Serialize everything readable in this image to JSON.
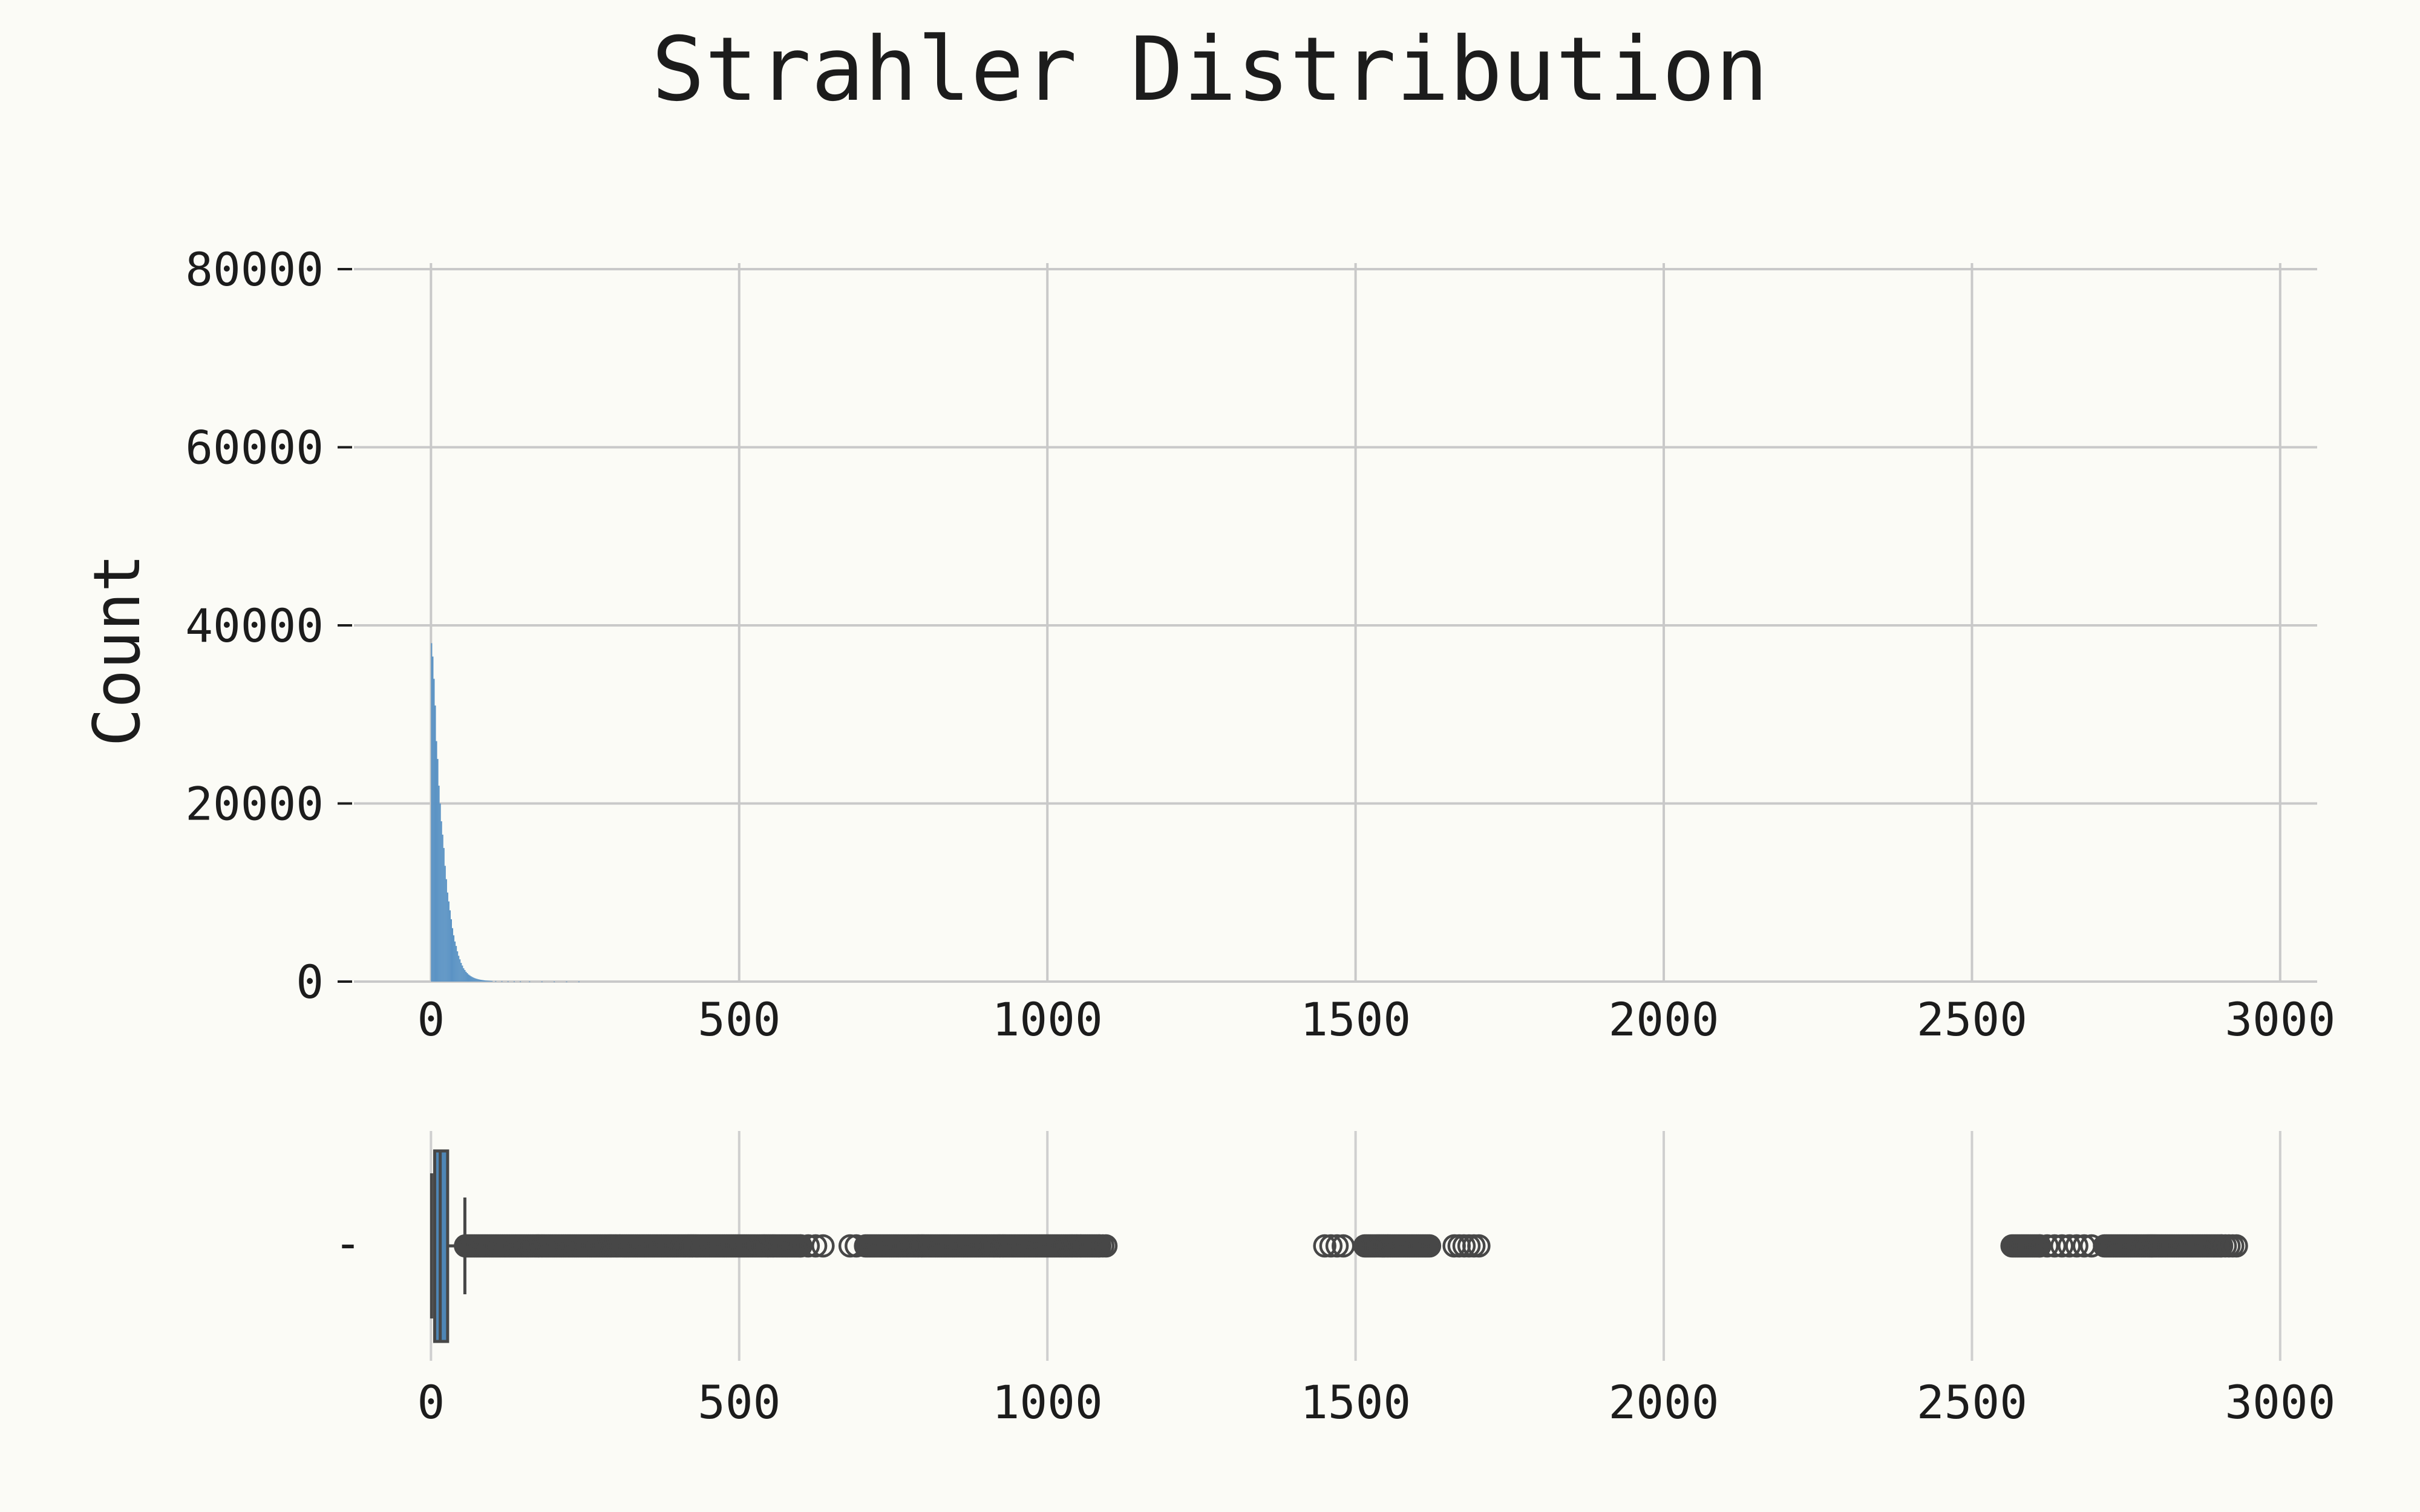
{
  "colors": {
    "background": "#fbfbf6",
    "bar": "#5b93c4",
    "box_fill": "#4f86b5",
    "outlier": "#474747",
    "grid": "#cfcfcf",
    "text": "#1c1c1c"
  },
  "chart_data": [
    {
      "type": "bar",
      "title": "Strahler Distribution",
      "xlabel": "",
      "ylabel": "Count",
      "xlim": [
        -125,
        3060
      ],
      "ylim": [
        0,
        80000
      ],
      "xticks": [
        "0",
        "500",
        "1000",
        "1500",
        "2000",
        "2500",
        "3000"
      ],
      "yticks": [
        "0",
        "20000",
        "40000",
        "60000",
        "80000"
      ],
      "grid": true,
      "histogram": {
        "bin_width": 2,
        "x": [
          1,
          3,
          5,
          7,
          9,
          11,
          13,
          15,
          17,
          19,
          21,
          23,
          25,
          27,
          29,
          31,
          33,
          35,
          37,
          39,
          41,
          43,
          45,
          47,
          49,
          51,
          53,
          55,
          57,
          59,
          61,
          63,
          65,
          67,
          69,
          71,
          73,
          75,
          77,
          79,
          81,
          83,
          85,
          87,
          89,
          91,
          93,
          95,
          97,
          99,
          105,
          115,
          125,
          135,
          145,
          160,
          180,
          200,
          220,
          240
        ],
        "counts": [
          38000,
          36500,
          34000,
          31000,
          27000,
          25000,
          22000,
          20000,
          18000,
          16500,
          15000,
          13000,
          11500,
          10000,
          9000,
          8000,
          7000,
          6000,
          5200,
          4500,
          4000,
          3400,
          2900,
          2500,
          2100,
          1800,
          1500,
          1300,
          1100,
          950,
          800,
          700,
          600,
          520,
          450,
          390,
          340,
          300,
          260,
          230,
          200,
          180,
          160,
          140,
          120,
          110,
          100,
          90,
          80,
          70,
          55,
          45,
          35,
          30,
          25,
          20,
          15,
          12,
          10,
          8
        ]
      }
    },
    {
      "type": "box",
      "xlim": [
        -125,
        3060
      ],
      "xticks": [
        "0",
        "500",
        "1000",
        "1500",
        "2000",
        "2500",
        "3000"
      ],
      "ytick_label": "-",
      "grid": true,
      "box": {
        "whisker_low": 1,
        "q1": 6,
        "median": 15,
        "q3": 27,
        "whisker_high": 55
      },
      "outliers": [
        {
          "from": 56,
          "to": 600
        },
        {
          "from": 600,
          "to": 640,
          "step": 12
        },
        {
          "from": 680,
          "to": 690,
          "step": 10
        },
        {
          "from": 705,
          "to": 1085
        },
        {
          "from": 1085,
          "to": 1095,
          "step": 5
        },
        {
          "from": 1450,
          "to": 1480,
          "step": 10
        },
        {
          "from": 1515,
          "to": 1620
        },
        {
          "from": 1660,
          "to": 1700,
          "step": 8
        },
        {
          "from": 2565,
          "to": 2610
        },
        {
          "from": 2610,
          "to": 2700,
          "step": 12
        },
        {
          "from": 2715,
          "to": 2905
        },
        {
          "from": 2905,
          "to": 2930,
          "step": 6
        }
      ]
    }
  ]
}
